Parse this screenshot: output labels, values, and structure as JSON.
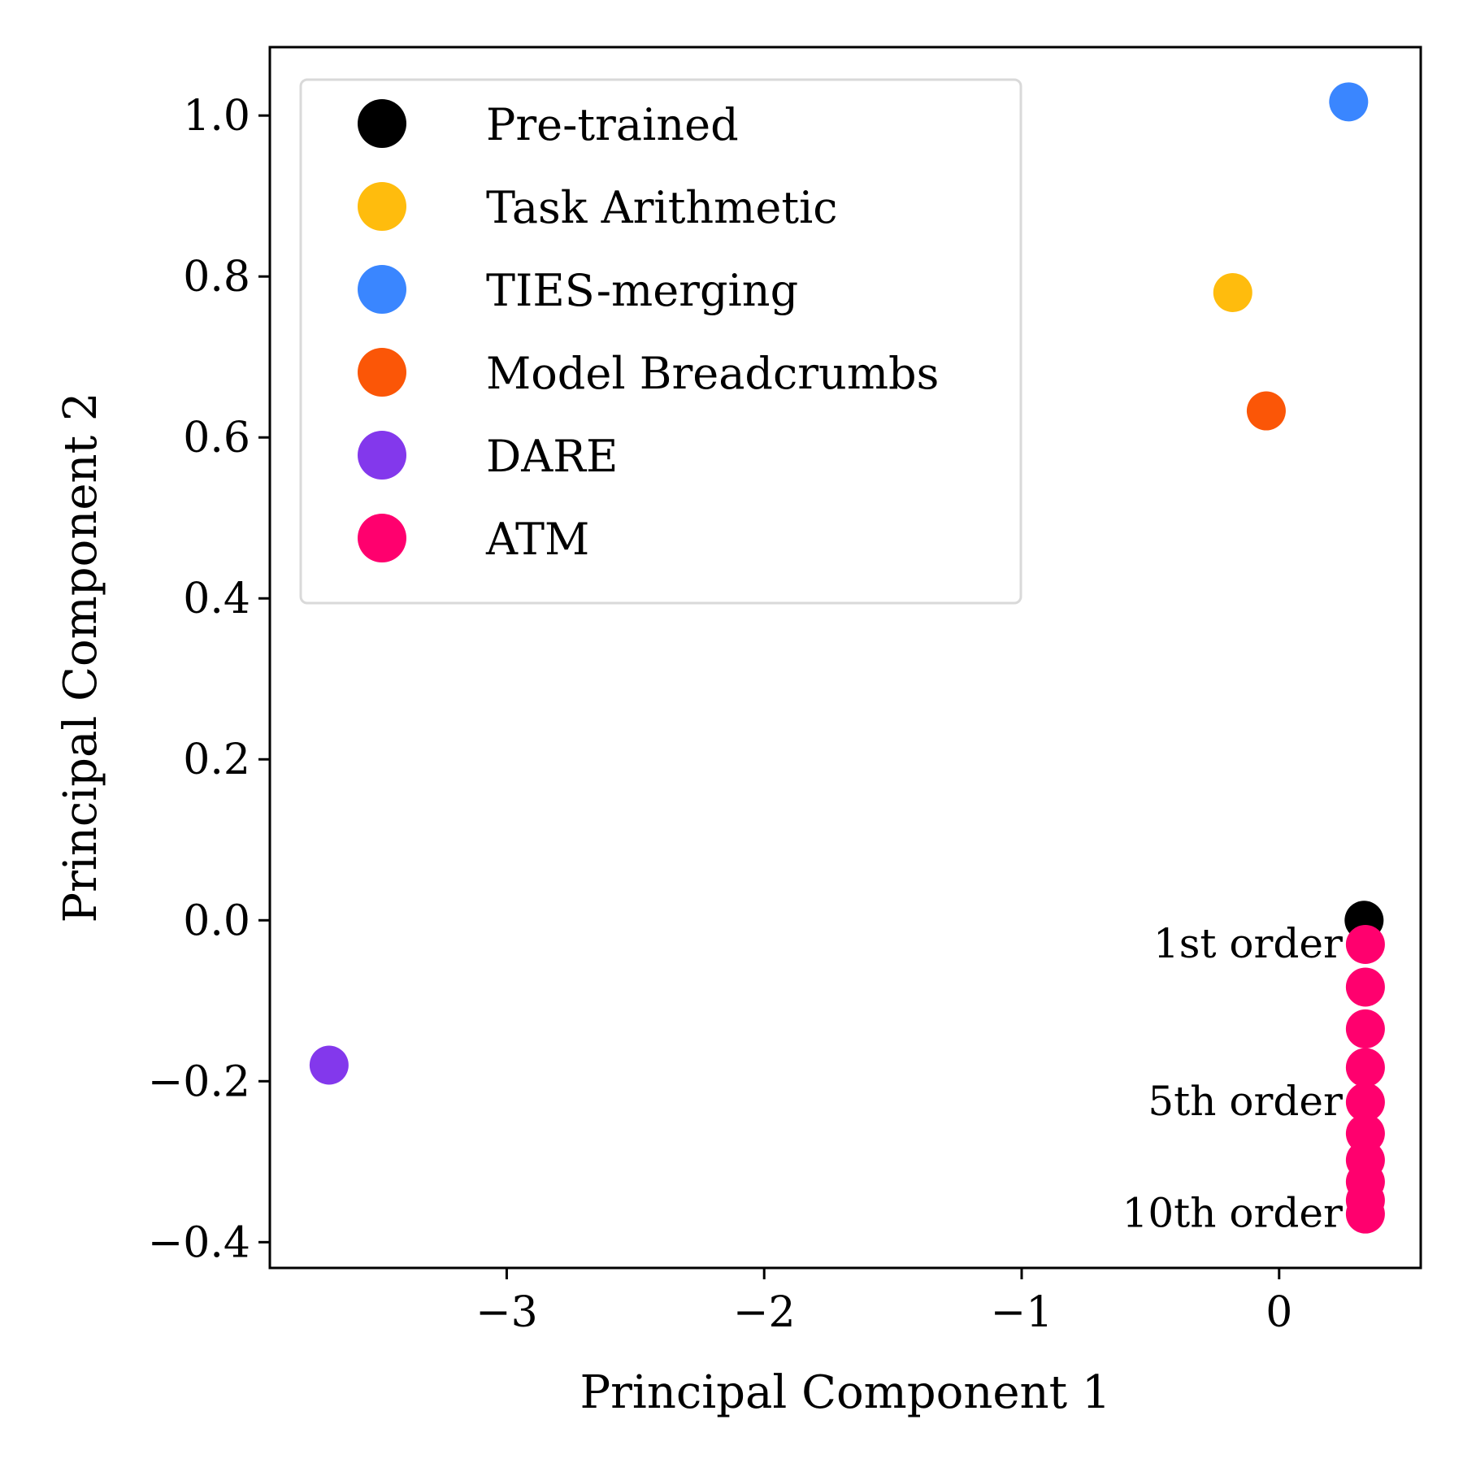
{
  "chart_data": {
    "type": "scatter",
    "xlabel": "Principal Component 1",
    "ylabel": "Principal Component 2",
    "xlim": [
      -3.92,
      0.55
    ],
    "ylim": [
      -0.432,
      1.085
    ],
    "xticks": [
      {
        "value": -3,
        "label": "−3"
      },
      {
        "value": -2,
        "label": "−2"
      },
      {
        "value": -1,
        "label": "−1"
      },
      {
        "value": 0,
        "label": "0"
      }
    ],
    "yticks": [
      {
        "value": -0.4,
        "label": "−0.4"
      },
      {
        "value": -0.2,
        "label": "−0.2"
      },
      {
        "value": 0.0,
        "label": "0.0"
      },
      {
        "value": 0.2,
        "label": "0.2"
      },
      {
        "value": 0.4,
        "label": "0.4"
      },
      {
        "value": 0.6,
        "label": "0.6"
      },
      {
        "value": 0.8,
        "label": "0.8"
      },
      {
        "value": 1.0,
        "label": "1.0"
      }
    ],
    "grid": false,
    "legend_position": "top-left",
    "series": [
      {
        "name": "Pre-trained",
        "color": "#000000",
        "points": [
          {
            "x": 0.33,
            "y": 0.0
          }
        ]
      },
      {
        "name": "Task Arithmetic",
        "color": "#FFBC0D",
        "points": [
          {
            "x": -0.18,
            "y": 0.78
          }
        ]
      },
      {
        "name": "TIES-merging",
        "color": "#3A86FF",
        "points": [
          {
            "x": 0.27,
            "y": 1.017
          }
        ]
      },
      {
        "name": "Model Breadcrumbs",
        "color": "#FB5607",
        "points": [
          {
            "x": -0.05,
            "y": 0.633
          }
        ]
      },
      {
        "name": "DARE",
        "color": "#8338EC",
        "points": [
          {
            "x": -3.69,
            "y": -0.18
          }
        ]
      },
      {
        "name": "ATM",
        "color": "#FF006E",
        "points": [
          {
            "x": 0.335,
            "y": -0.03
          },
          {
            "x": 0.335,
            "y": -0.083
          },
          {
            "x": 0.335,
            "y": -0.135
          },
          {
            "x": 0.335,
            "y": -0.183
          },
          {
            "x": 0.335,
            "y": -0.226
          },
          {
            "x": 0.335,
            "y": -0.265
          },
          {
            "x": 0.335,
            "y": -0.298
          },
          {
            "x": 0.335,
            "y": -0.325
          },
          {
            "x": 0.335,
            "y": -0.348
          },
          {
            "x": 0.335,
            "y": -0.365
          }
        ]
      }
    ],
    "annotations": [
      {
        "text": "1st order",
        "x": 0.335,
        "y": -0.03
      },
      {
        "text": "5th order",
        "x": 0.335,
        "y": -0.226
      },
      {
        "text": "10th order",
        "x": 0.335,
        "y": -0.365
      }
    ]
  }
}
